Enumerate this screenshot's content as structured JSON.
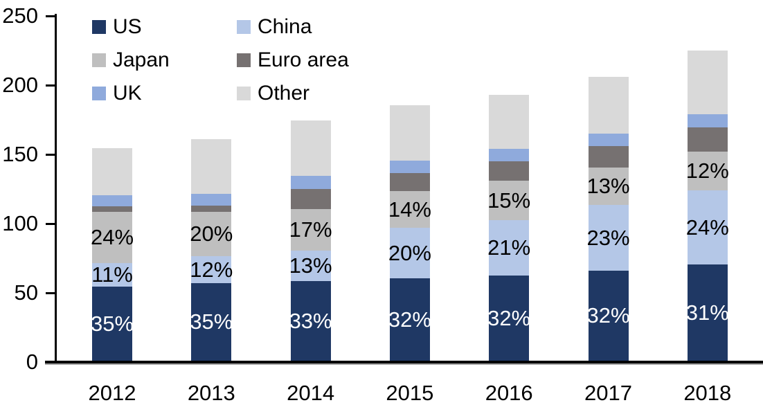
{
  "chart_data": {
    "type": "bar",
    "stacked": true,
    "title": "",
    "categories": [
      "2012",
      "2013",
      "2014",
      "2015",
      "2016",
      "2017",
      "2018"
    ],
    "series": [
      {
        "name": "US",
        "color": "#1f3864",
        "values": [
          53.5,
          56,
          57.5,
          59.5,
          61.5,
          65,
          69.5
        ],
        "labels": [
          "35%",
          "35%",
          "33%",
          "32%",
          "32%",
          "32%",
          "31%"
        ],
        "label_color": "#ffffff"
      },
      {
        "name": "China",
        "color": "#b4c7e7",
        "values": [
          17,
          19.5,
          22,
          36.5,
          40,
          47.5,
          53.5
        ],
        "labels": [
          "11%",
          "12%",
          "13%",
          "20%",
          "21%",
          "23%",
          "24%"
        ],
        "label_color": "#000000"
      },
      {
        "name": "Japan",
        "color": "#bfbfbf",
        "values": [
          37,
          32,
          30,
          26.5,
          28.5,
          27,
          28
        ],
        "labels": [
          "24%",
          "20%",
          "17%",
          "14%",
          "15%",
          "13%",
          "12%"
        ],
        "label_color": "#000000"
      },
      {
        "name": "Euro area",
        "color": "#767171",
        "values": [
          4,
          4.5,
          14.5,
          13,
          14,
          15.5,
          17.5
        ],
        "labels": null,
        "label_color": null
      },
      {
        "name": "UK",
        "color": "#8faadc",
        "values": [
          8,
          8.5,
          9.5,
          9,
          9,
          9,
          9.5
        ],
        "labels": null,
        "label_color": null
      },
      {
        "name": "Other",
        "color": "#d9d9d9",
        "values": [
          34,
          39.5,
          40,
          40,
          39,
          41,
          46
        ],
        "labels": null,
        "label_color": null
      }
    ],
    "ylim": [
      0,
      250
    ],
    "yticks": [
      0,
      50,
      100,
      150,
      200,
      250
    ],
    "legend_position": "top-left",
    "legend_columns": 2,
    "grid": false,
    "axis_color": "#000000",
    "background_color": "#ffffff"
  }
}
